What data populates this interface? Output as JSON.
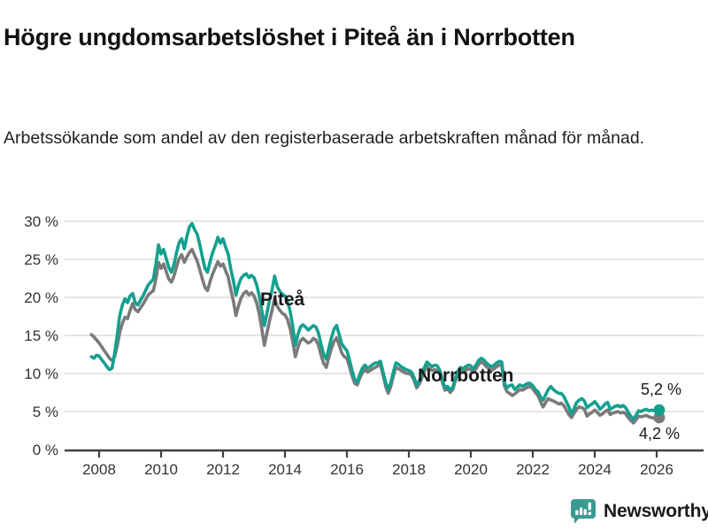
{
  "header": {
    "title": "Högre ungdomsarbetslöshet i Piteå än i Norrbotten",
    "subtitle": "Arbetssökande som andel av den registerbaserade arbetskraften månad för månad."
  },
  "chart_data": {
    "type": "line",
    "unit": "percent of registered labour force",
    "start_month": "2007-10",
    "end_month": "2026-02",
    "months_per_point": 1,
    "ylim": [
      0,
      30
    ],
    "grid": true,
    "legend_position": "inline-labels",
    "colors": {
      "grid": "#d8d8d8",
      "axis": "#404040",
      "pitea": "#14a08f",
      "norrbotten": "#7a7a7a",
      "text": "#333333",
      "brand": "#3a9a92"
    },
    "y_ticks": [
      {
        "value": 0,
        "label": "0 %"
      },
      {
        "value": 5,
        "label": "5 %"
      },
      {
        "value": 10,
        "label": "10 %"
      },
      {
        "value": 15,
        "label": "15 %"
      },
      {
        "value": 20,
        "label": "20 %"
      },
      {
        "value": 25,
        "label": "25 %"
      },
      {
        "value": 30,
        "label": "30 %"
      }
    ],
    "x_ticks": [
      2008,
      2010,
      2012,
      2014,
      2016,
      2018,
      2020,
      2022,
      2024,
      2026
    ],
    "series": [
      {
        "name": "Norrbotten",
        "color": "#7a7a7a",
        "end_label": "4,2 %",
        "end_value": 4.2,
        "values": [
          15.1,
          14.8,
          14.4,
          14.0,
          13.5,
          13.0,
          12.5,
          12.0,
          11.7,
          12.2,
          13.6,
          15.4,
          16.6,
          17.4,
          17.2,
          18.3,
          19.2,
          18.4,
          18.1,
          18.6,
          19.1,
          19.7,
          20.3,
          20.6,
          20.9,
          22.4,
          24.6,
          23.8,
          24.4,
          23.4,
          22.4,
          22.0,
          22.8,
          24.0,
          25.1,
          25.6,
          24.6,
          25.3,
          25.9,
          26.3,
          25.5,
          24.8,
          23.6,
          22.4,
          21.3,
          20.9,
          22.1,
          23.1,
          23.9,
          24.7,
          24.1,
          24.4,
          23.5,
          22.7,
          21.0,
          19.5,
          17.6,
          18.9,
          19.9,
          20.5,
          20.8,
          20.3,
          20.6,
          20.2,
          19.3,
          17.9,
          15.9,
          13.7,
          15.3,
          16.9,
          18.3,
          19.9,
          18.8,
          18.3,
          17.9,
          17.7,
          17.1,
          15.9,
          14.2,
          12.2,
          13.4,
          14.3,
          14.6,
          14.3,
          14.0,
          14.2,
          14.6,
          14.4,
          13.7,
          12.4,
          11.3,
          10.8,
          12.1,
          13.3,
          14.2,
          14.7,
          13.7,
          12.7,
          12.2,
          12.0,
          10.9,
          9.7,
          8.7,
          8.5,
          9.4,
          10.1,
          10.5,
          10.2,
          10.4,
          10.6,
          10.8,
          11.0,
          11.2,
          9.8,
          8.3,
          7.4,
          8.3,
          9.7,
          10.8,
          10.6,
          10.4,
          10.2,
          10.0,
          10.0,
          9.8,
          9.1,
          8.1,
          8.6,
          9.4,
          10.2,
          10.9,
          10.6,
          10.4,
          10.5,
          10.4,
          9.9,
          8.8,
          7.8,
          8.0,
          7.5,
          7.9,
          9.0,
          9.8,
          10.3,
          10.1,
          10.4,
          10.6,
          10.5,
          10.1,
          10.6,
          11.2,
          11.5,
          11.3,
          10.9,
          10.6,
          10.4,
          10.6,
          10.9,
          11.1,
          11.0,
          8.4,
          7.6,
          7.4,
          7.1,
          7.3,
          7.6,
          7.9,
          7.8,
          8.0,
          8.2,
          8.3,
          8.0,
          7.5,
          7.1,
          6.3,
          5.6,
          6.2,
          6.7,
          6.5,
          6.4,
          6.2,
          6.0,
          6.1,
          5.8,
          5.2,
          4.6,
          4.2,
          4.8,
          5.3,
          5.6,
          5.5,
          5.3,
          4.4,
          4.7,
          4.9,
          5.2,
          4.9,
          4.5,
          4.7,
          5.0,
          5.2,
          4.6,
          4.8,
          4.9,
          5.0,
          4.8,
          4.9,
          4.7,
          4.2,
          3.8,
          3.5,
          3.9,
          4.4,
          4.3,
          4.4,
          4.5,
          4.3,
          4.2,
          4.1,
          4.0,
          4.2
        ]
      },
      {
        "name": "Piteå",
        "color": "#14a08f",
        "end_label": "5,2 %",
        "end_value": 5.2,
        "values": [
          12.2,
          12.0,
          12.4,
          12.3,
          11.8,
          11.4,
          10.9,
          10.5,
          10.7,
          12.6,
          15.0,
          17.6,
          19.0,
          19.8,
          19.3,
          20.2,
          20.5,
          19.3,
          19.0,
          19.6,
          20.2,
          20.9,
          21.6,
          22.0,
          22.4,
          24.4,
          26.9,
          25.7,
          26.3,
          25.1,
          23.9,
          23.3,
          24.3,
          25.9,
          27.2,
          27.7,
          26.4,
          28.0,
          29.3,
          29.7,
          28.9,
          28.3,
          26.9,
          25.3,
          23.8,
          23.3,
          24.7,
          25.9,
          26.8,
          27.9,
          27.1,
          27.7,
          26.6,
          25.7,
          23.7,
          22.2,
          20.3,
          21.6,
          22.5,
          22.9,
          23.1,
          22.6,
          22.9,
          22.6,
          21.7,
          20.3,
          18.3,
          16.3,
          17.9,
          19.6,
          21.0,
          22.8,
          21.4,
          20.8,
          20.4,
          20.2,
          19.5,
          18.2,
          16.2,
          13.7,
          15.1,
          16.1,
          16.4,
          16.1,
          15.7,
          16.0,
          16.3,
          16.1,
          15.3,
          13.8,
          12.5,
          11.9,
          13.3,
          14.7,
          15.8,
          16.3,
          15.1,
          13.9,
          13.4,
          13.0,
          11.8,
          10.4,
          9.2,
          8.9,
          9.9,
          10.7,
          11.1,
          10.7,
          10.9,
          11.2,
          11.4,
          11.4,
          11.6,
          10.2,
          8.8,
          7.9,
          8.8,
          10.2,
          11.4,
          11.2,
          10.9,
          10.7,
          10.5,
          10.4,
          10.2,
          9.5,
          8.5,
          9.0,
          9.9,
          10.8,
          11.5,
          11.2,
          10.9,
          11.1,
          11.0,
          10.4,
          9.2,
          8.1,
          8.3,
          7.8,
          8.2,
          9.4,
          10.3,
          10.8,
          10.6,
          10.9,
          11.1,
          11.0,
          10.6,
          11.1,
          11.7,
          12.0,
          11.8,
          11.4,
          11.1,
          10.9,
          11.1,
          11.4,
          11.6,
          11.5,
          8.8,
          8.1,
          8.4,
          8.5,
          7.9,
          8.2,
          8.5,
          8.3,
          8.5,
          8.7,
          8.7,
          8.4,
          7.9,
          7.6,
          6.9,
          6.5,
          7.2,
          7.9,
          8.3,
          7.9,
          7.6,
          7.4,
          7.4,
          7.0,
          6.3,
          5.6,
          4.7,
          5.4,
          6.2,
          6.5,
          6.7,
          6.4,
          5.5,
          5.8,
          6.0,
          6.3,
          5.9,
          5.3,
          5.6,
          6.0,
          6.2,
          5.3,
          5.5,
          5.7,
          5.8,
          5.6,
          5.8,
          5.5,
          4.9,
          4.4,
          4.0,
          4.5,
          5.1,
          5.0,
          5.2,
          5.3,
          5.1,
          5.2,
          5.1,
          5.0,
          5.2
        ]
      }
    ]
  },
  "footer": {
    "brand": "Newsworthy",
    "icon": "newsworthy-chart-bubble-icon"
  }
}
